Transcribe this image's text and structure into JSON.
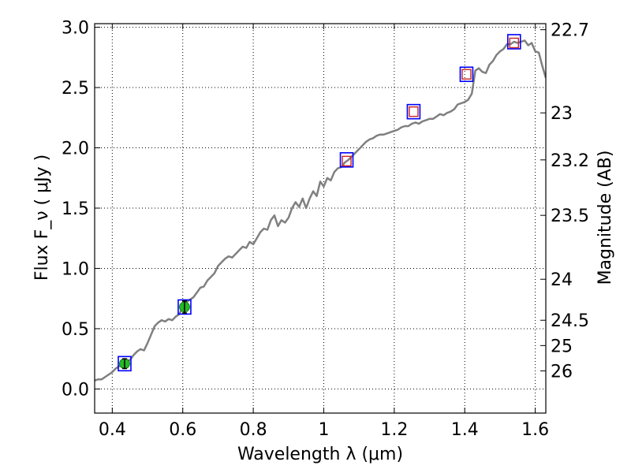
{
  "chart_data": {
    "type": "line",
    "title": "",
    "xlabel": "Wavelength  λ (μm)",
    "ylabel": "Flux  F_ν  ( μJy )",
    "y2label": "Magnitude (AB)",
    "xlim": [
      0.35,
      1.63
    ],
    "ylim": [
      -0.2,
      3.03
    ],
    "grid": true,
    "x_ticks": [
      0.4,
      0.6,
      0.8,
      1.0,
      1.2,
      1.4,
      1.6
    ],
    "x_tick_labels": [
      "0.4",
      "0.6",
      "0.8",
      "1",
      "1.2",
      "1.4",
      "1.6"
    ],
    "y_ticks": [
      0.0,
      0.5,
      1.0,
      1.5,
      2.0,
      2.5,
      3.0
    ],
    "y_tick_labels": [
      "0.0",
      "0.5",
      "1.0",
      "1.5",
      "2.0",
      "2.5",
      "3.0"
    ],
    "y2_ticks": [
      {
        "label": "22.7",
        "flux": 2.98
      },
      {
        "label": "23",
        "flux": 2.29
      },
      {
        "label": "23.2",
        "flux": 1.9
      },
      {
        "label": "23.5",
        "flux": 1.44
      },
      {
        "label": "24",
        "flux": 0.91
      },
      {
        "label": "24.5",
        "flux": 0.57
      },
      {
        "label": "25",
        "flux": 0.36
      },
      {
        "label": "26",
        "flux": 0.15
      }
    ],
    "series": [
      {
        "kind": "spectrum",
        "color": "#808080",
        "x": [
          0.35,
          0.36,
          0.37,
          0.38,
          0.39,
          0.4,
          0.41,
          0.42,
          0.43,
          0.44,
          0.45,
          0.46,
          0.47,
          0.48,
          0.49,
          0.5,
          0.51,
          0.52,
          0.53,
          0.54,
          0.55,
          0.56,
          0.57,
          0.58,
          0.59,
          0.6,
          0.61,
          0.62,
          0.63,
          0.64,
          0.65,
          0.66,
          0.67,
          0.68,
          0.69,
          0.7,
          0.71,
          0.72,
          0.73,
          0.74,
          0.75,
          0.76,
          0.77,
          0.78,
          0.79,
          0.8,
          0.81,
          0.82,
          0.83,
          0.84,
          0.85,
          0.86,
          0.87,
          0.88,
          0.89,
          0.9,
          0.91,
          0.92,
          0.93,
          0.94,
          0.95,
          0.96,
          0.97,
          0.98,
          0.99,
          1.0,
          1.01,
          1.02,
          1.03,
          1.04,
          1.05,
          1.06,
          1.07,
          1.08,
          1.09,
          1.1,
          1.11,
          1.12,
          1.13,
          1.14,
          1.15,
          1.16,
          1.17,
          1.18,
          1.19,
          1.2,
          1.21,
          1.22,
          1.23,
          1.24,
          1.25,
          1.26,
          1.27,
          1.28,
          1.29,
          1.3,
          1.31,
          1.32,
          1.33,
          1.34,
          1.35,
          1.36,
          1.37,
          1.38,
          1.39,
          1.4,
          1.41,
          1.42,
          1.43,
          1.44,
          1.45,
          1.46,
          1.47,
          1.48,
          1.49,
          1.5,
          1.51,
          1.52,
          1.53,
          1.54,
          1.55,
          1.56,
          1.57,
          1.58,
          1.59,
          1.6,
          1.61,
          1.62,
          1.63
        ],
        "y": [
          0.07,
          0.08,
          0.08,
          0.1,
          0.12,
          0.14,
          0.17,
          0.19,
          0.2,
          0.23,
          0.24,
          0.28,
          0.31,
          0.33,
          0.32,
          0.38,
          0.45,
          0.52,
          0.55,
          0.57,
          0.56,
          0.58,
          0.57,
          0.6,
          0.62,
          0.68,
          0.72,
          0.74,
          0.76,
          0.8,
          0.84,
          0.85,
          0.9,
          0.93,
          0.96,
          1.02,
          1.05,
          1.08,
          1.1,
          1.09,
          1.12,
          1.15,
          1.18,
          1.17,
          1.22,
          1.2,
          1.25,
          1.3,
          1.33,
          1.32,
          1.4,
          1.44,
          1.35,
          1.4,
          1.38,
          1.42,
          1.5,
          1.55,
          1.51,
          1.58,
          1.5,
          1.58,
          1.64,
          1.6,
          1.72,
          1.68,
          1.75,
          1.73,
          1.8,
          1.83,
          1.84,
          1.88,
          1.9,
          1.93,
          1.96,
          1.99,
          2.02,
          2.05,
          2.07,
          2.08,
          2.1,
          2.11,
          2.11,
          2.12,
          2.13,
          2.14,
          2.15,
          2.17,
          2.18,
          2.18,
          2.2,
          2.21,
          2.2,
          2.22,
          2.23,
          2.24,
          2.24,
          2.26,
          2.28,
          2.27,
          2.29,
          2.3,
          2.32,
          2.36,
          2.37,
          2.38,
          2.4,
          2.45,
          2.64,
          2.66,
          2.63,
          2.62,
          2.69,
          2.72,
          2.77,
          2.8,
          2.82,
          2.86,
          2.86,
          2.88,
          2.87,
          2.88,
          2.89,
          2.85,
          2.87,
          2.8,
          2.79,
          2.68,
          2.58
        ]
      },
      {
        "kind": "model_photometry",
        "marker": "square",
        "color": "#0000ff",
        "x": [
          0.435,
          0.605,
          1.065,
          1.255,
          1.405,
          1.54
        ],
        "y": [
          0.21,
          0.68,
          1.9,
          2.3,
          2.61,
          2.88
        ]
      },
      {
        "kind": "observed_detections",
        "marker": "circle",
        "color": "#22bb22",
        "x": [
          0.435,
          0.605
        ],
        "y": [
          0.21,
          0.68
        ],
        "yerr": [
          0.04,
          0.05
        ]
      },
      {
        "kind": "observed_upper_points",
        "marker": "square",
        "color": "#cc2222",
        "x": [
          1.065,
          1.255,
          1.405,
          1.54
        ],
        "y": [
          1.89,
          2.3,
          2.61,
          2.87
        ]
      }
    ]
  }
}
